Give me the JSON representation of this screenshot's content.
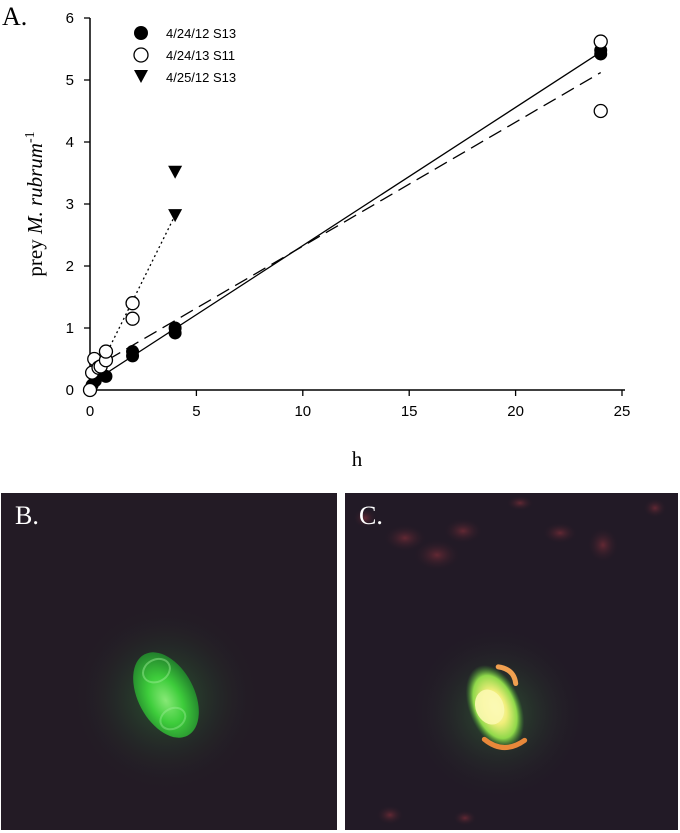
{
  "figure": {
    "panel_a_label": "A.",
    "panel_b_label": "B.",
    "panel_c_label": "C."
  },
  "chart_data": {
    "type": "scatter",
    "xlabel": "h",
    "ylabel_prefix": "prey ",
    "ylabel_italic": "M. rubrum",
    "ylabel_superscript": "-1",
    "xlim": [
      0,
      25
    ],
    "ylim": [
      0,
      6
    ],
    "xticks": [
      0,
      5,
      10,
      15,
      20,
      25
    ],
    "yticks": [
      0,
      1,
      2,
      3,
      4,
      5,
      6
    ],
    "grid": false,
    "legend_position": "top-left",
    "series": [
      {
        "name": "4/24/12 S13",
        "marker": "filled-circle",
        "x": [
          0,
          0.1,
          0.25,
          0.5,
          0.75,
          2,
          2,
          4,
          4,
          24,
          24
        ],
        "y": [
          0,
          0.08,
          0.15,
          0.25,
          0.22,
          0.55,
          0.62,
          0.92,
          1.0,
          5.42,
          5.48
        ],
        "fit": {
          "style": "solid",
          "x": [
            0,
            24
          ],
          "y": [
            0.1,
            5.45
          ]
        }
      },
      {
        "name": "4/24/13 S11",
        "marker": "open-circle",
        "x": [
          0,
          0.1,
          0.2,
          0.4,
          0.5,
          0.75,
          0.75,
          2,
          2,
          24,
          24
        ],
        "y": [
          0,
          0.28,
          0.5,
          0.36,
          0.38,
          0.48,
          0.62,
          1.15,
          1.4,
          5.62,
          4.5
        ],
        "fit": {
          "style": "dashed",
          "x": [
            0,
            24
          ],
          "y": [
            0.32,
            5.12
          ]
        }
      },
      {
        "name": "4/25/12 S13",
        "marker": "filled-triangle-down",
        "x": [
          4,
          4
        ],
        "y": [
          3.52,
          2.82
        ],
        "fit": {
          "style": "dotted",
          "x": [
            0,
            4
          ],
          "y": [
            0.05,
            2.82
          ]
        }
      }
    ]
  },
  "colors": {
    "marker": "#000000",
    "micro_background_b": "#231b25",
    "micro_background_c": "#221a26",
    "cell_green": "#39d63c",
    "cell_yellow": "#f2f28a",
    "cell_orange": "#e88a3c",
    "debris_red": "#5a2630"
  }
}
